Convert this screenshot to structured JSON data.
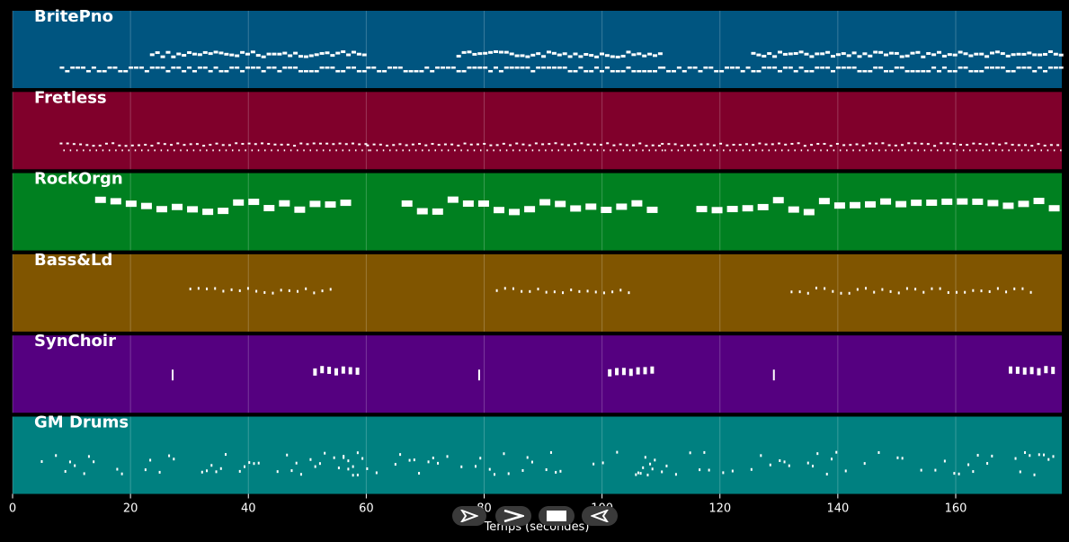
{
  "chart_data": {
    "type": "piano-roll",
    "title": "",
    "xlabel": "Temps (secondes)",
    "ylabel": "",
    "xlim": [
      0,
      178
    ],
    "xticks": [
      0,
      20,
      40,
      60,
      80,
      100,
      120,
      140,
      160
    ],
    "grid": true,
    "series": [
      {
        "name": "BritePno",
        "color": "#005580"
      },
      {
        "name": "Fretless",
        "color": "#80002b"
      },
      {
        "name": "RockOrgn",
        "color": "#008020"
      },
      {
        "name": "Bass&Ld",
        "color": "#805500"
      },
      {
        "name": "SynChoir",
        "color": "#550080"
      },
      {
        "name": "GM Drums",
        "color": "#008080"
      }
    ]
  },
  "transport": [
    {
      "name": "rewind-button",
      "icon": "rewind-icon"
    },
    {
      "name": "play-button",
      "icon": "play-icon"
    },
    {
      "name": "stop-button",
      "icon": "stop-icon"
    },
    {
      "name": "back-button",
      "icon": "back-icon"
    }
  ]
}
